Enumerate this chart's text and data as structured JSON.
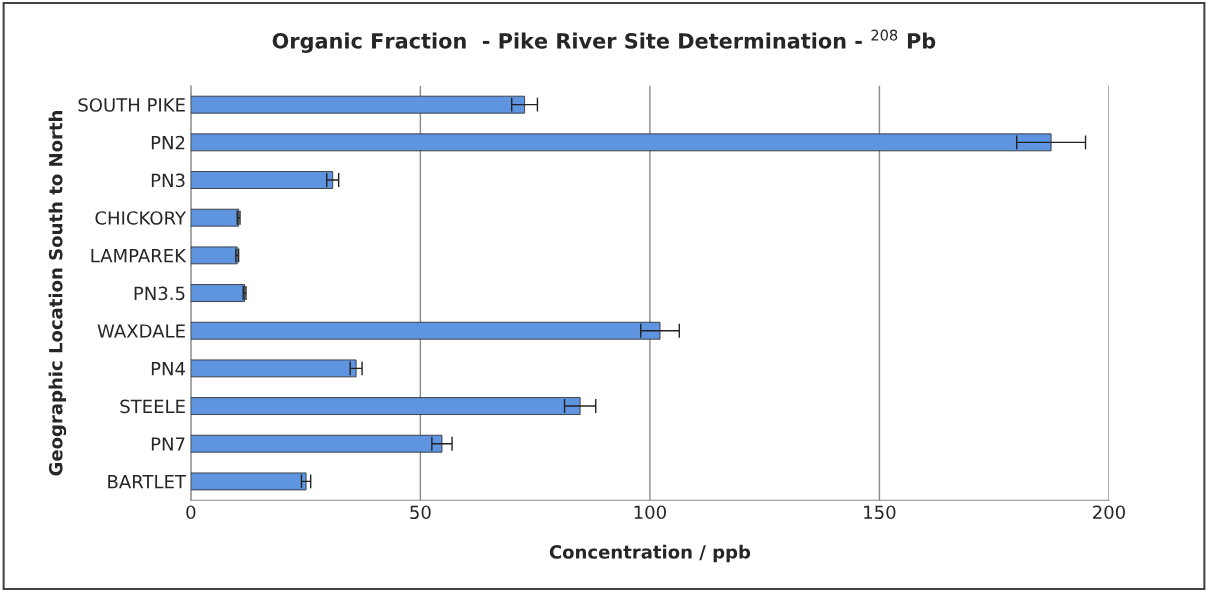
{
  "chart_data": {
    "type": "bar",
    "orientation": "horizontal",
    "title": "Organic Fraction  - Pike River Site Determination - $^{208}$ Pb",
    "xlabel": "Concentration / ppb",
    "ylabel": "Geographic Location South to North",
    "categories": [
      "SOUTH PIKE",
      "PN2",
      "PN3",
      "CHICKORY",
      "LAMPAREK",
      "PN3.5",
      "WAXDALE",
      "PN4",
      "STEELE",
      "PN7",
      "BARTLET"
    ],
    "values": [
      72.7,
      187.4,
      30.9,
      10.4,
      10.1,
      11.7,
      102.2,
      36.0,
      84.8,
      54.7,
      25.1
    ],
    "errors": [
      2.8,
      7.5,
      1.3,
      0.3,
      0.3,
      0.3,
      4.2,
      1.3,
      3.4,
      2.2,
      1.0
    ],
    "color": "#5f95e0",
    "xlim": [
      0,
      200
    ],
    "xticks": [
      0,
      50,
      100,
      150,
      200
    ],
    "grid": "x"
  }
}
